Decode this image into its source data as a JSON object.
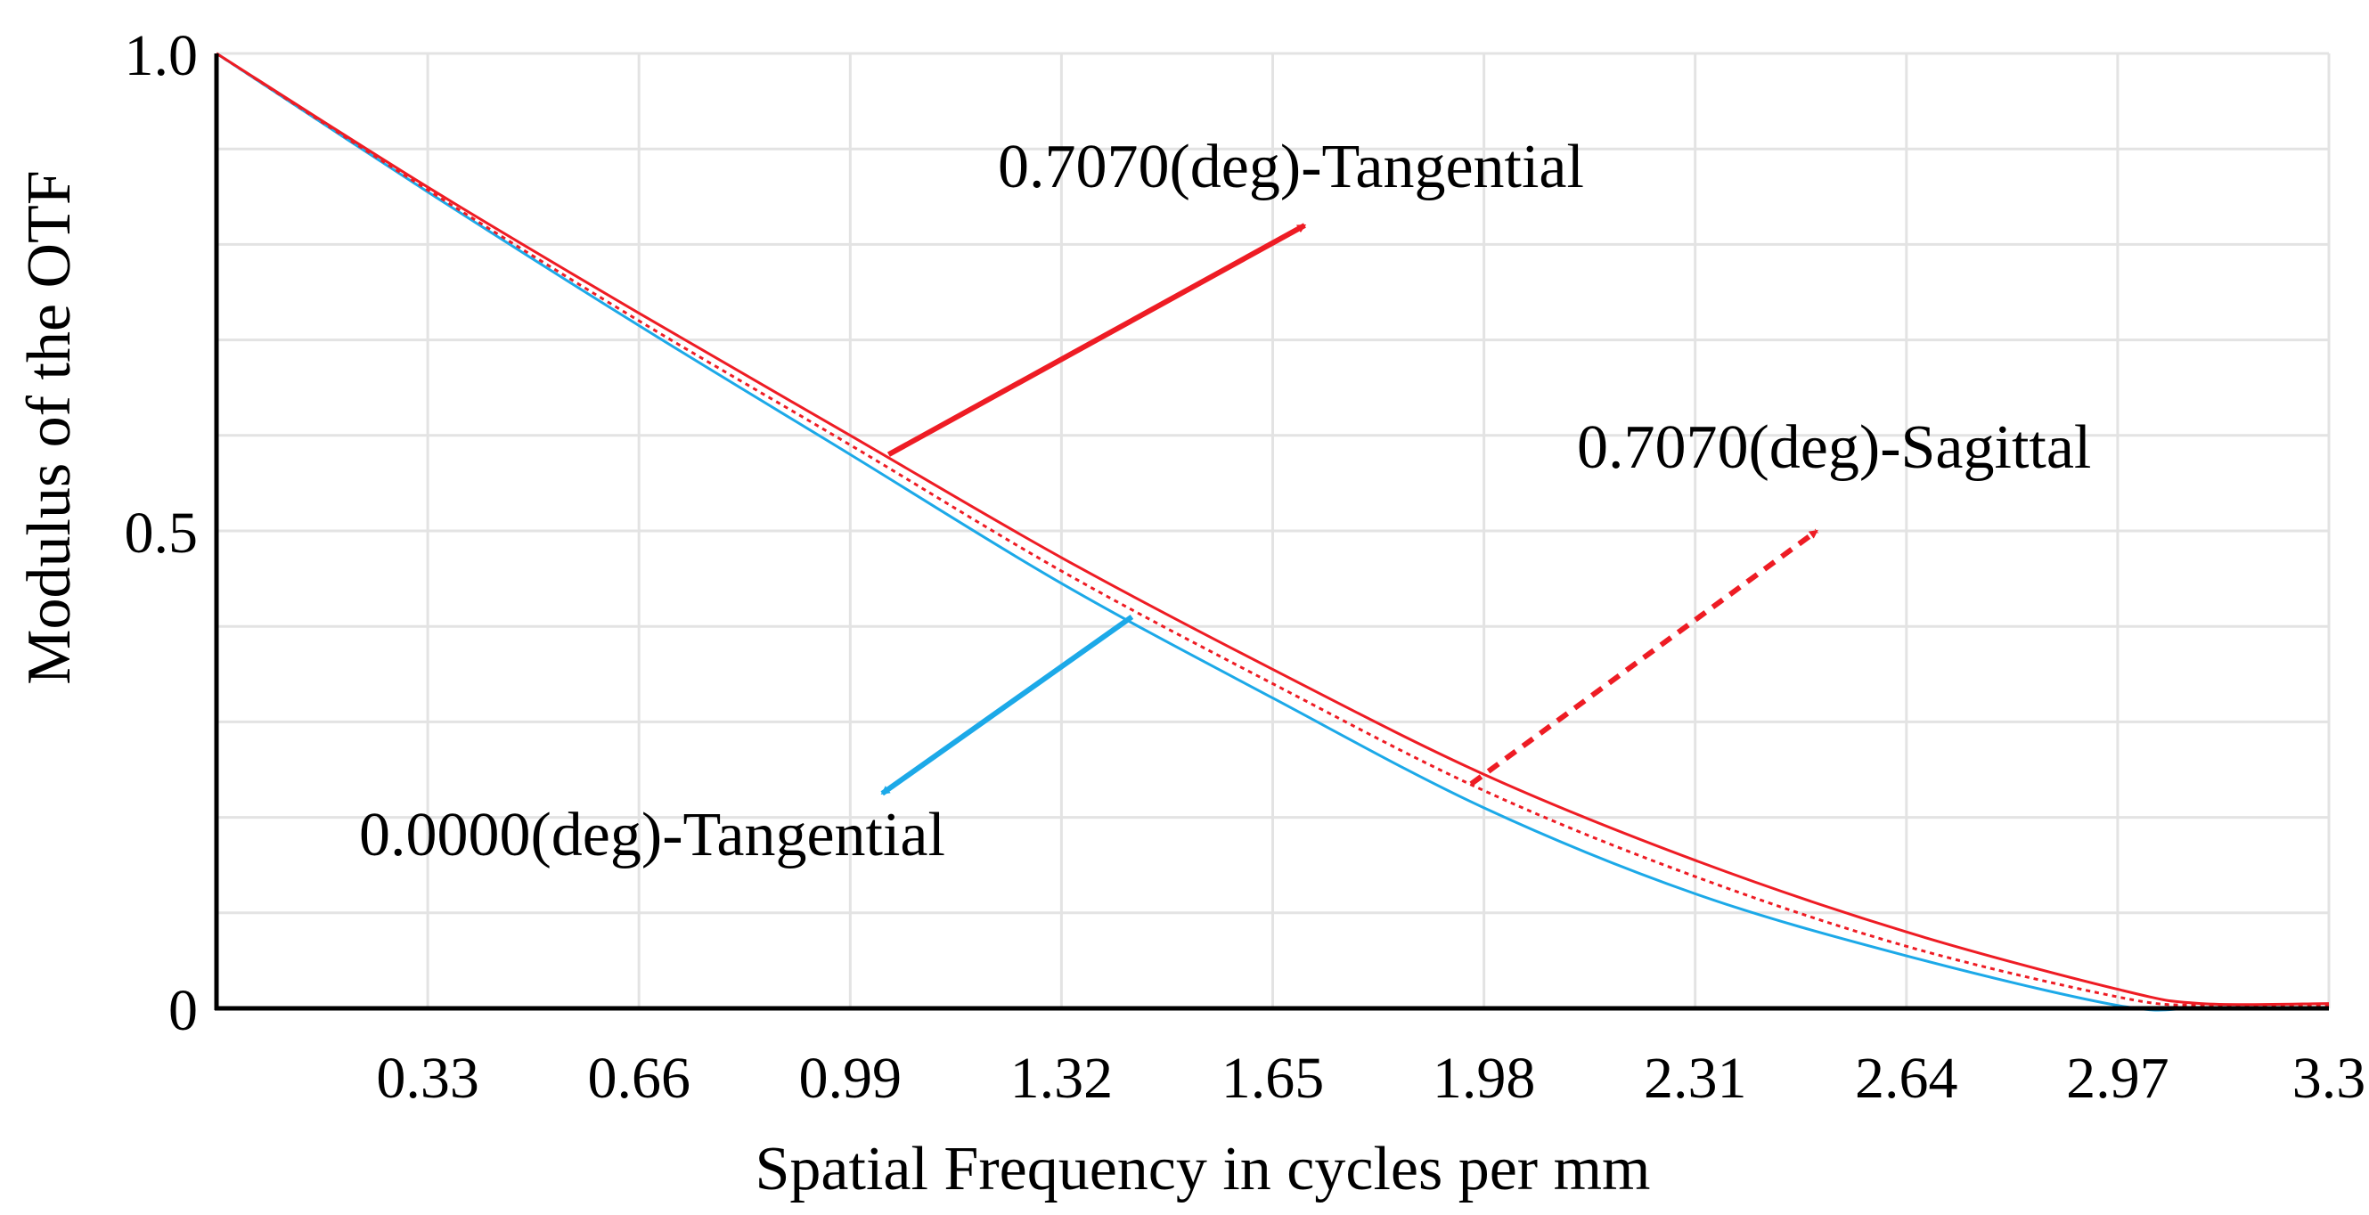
{
  "chart_data": {
    "type": "line",
    "title": "",
    "xlabel": "Spatial Frequency in cycles per mm",
    "ylabel": "Modulus of the OTF",
    "xlim": [
      0,
      3.3
    ],
    "ylim": [
      0,
      1.0
    ],
    "x_ticks": [
      0.33,
      0.66,
      0.99,
      1.32,
      1.65,
      1.98,
      2.31,
      2.64,
      2.97,
      3.3
    ],
    "x_tick_labels": [
      "0.33",
      "0.66",
      "0.99",
      "1.32",
      "1.65",
      "1.98",
      "2.31",
      "2.64",
      "2.97",
      "3.3"
    ],
    "y_ticks": [
      0,
      0.5,
      1.0
    ],
    "y_tick_labels": [
      "0",
      "0.5",
      "1.0"
    ],
    "grid": true,
    "series": [
      {
        "name": "0.0000(deg)-Tangential",
        "color": "#1ca9e8",
        "dash": "solid",
        "x": [
          0,
          0.33,
          0.66,
          0.99,
          1.32,
          1.65,
          1.98,
          2.31,
          2.64,
          2.97,
          3.1,
          3.3
        ],
        "y": [
          1.0,
          0.855,
          0.715,
          0.58,
          0.445,
          0.325,
          0.21,
          0.12,
          0.055,
          0.003,
          0.0,
          0.0
        ]
      },
      {
        "name": "0.7070(deg)-Tangential",
        "color": "#ee1c24",
        "dash": "solid",
        "x": [
          0,
          0.33,
          0.66,
          0.99,
          1.32,
          1.65,
          1.98,
          2.31,
          2.64,
          2.97,
          3.1,
          3.3
        ],
        "y": [
          1.0,
          0.86,
          0.728,
          0.6,
          0.472,
          0.355,
          0.245,
          0.155,
          0.08,
          0.02,
          0.005,
          0.005
        ]
      },
      {
        "name": "0.7070(deg)-Sagittal",
        "color": "#ee1c24",
        "dash": "dotted",
        "x": [
          0,
          0.33,
          0.66,
          0.99,
          1.32,
          1.65,
          1.98,
          2.31,
          2.64,
          2.97,
          3.1,
          3.3
        ],
        "y": [
          1.0,
          0.857,
          0.72,
          0.59,
          0.458,
          0.34,
          0.228,
          0.138,
          0.065,
          0.012,
          0.003,
          0.003
        ]
      }
    ],
    "annotations": [
      {
        "text": "0.7070(deg)-Tangential",
        "series": "0.7070(deg)-Tangential",
        "anchor_x": 1.05,
        "anchor_y": 0.58,
        "tip_x": 1.7,
        "tip_y": 0.82,
        "arrow_color": "#ee1c24",
        "arrow_style": "solid"
      },
      {
        "text": "0.7070(deg)-Sagittal",
        "series": "0.7070(deg)-Sagittal",
        "anchor_x": 1.96,
        "anchor_y": 0.235,
        "tip_x": 2.5,
        "tip_y": 0.5,
        "arrow_color": "#ee1c24",
        "arrow_style": "dashed"
      },
      {
        "text": "0.0000(deg)-Tangential",
        "series": "0.0000(deg)-Tangential",
        "anchor_x": 1.43,
        "anchor_y": 0.41,
        "tip_x": 1.04,
        "tip_y": 0.225,
        "arrow_color": "#1ca9e8",
        "arrow_style": "solid"
      }
    ]
  }
}
